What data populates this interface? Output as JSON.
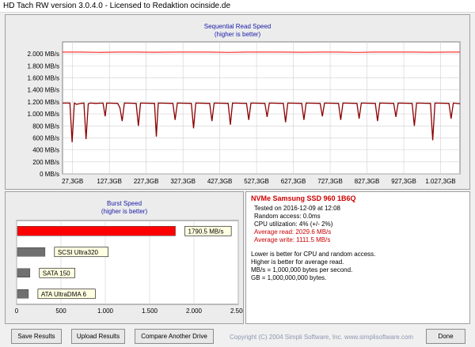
{
  "window": {
    "title": "HD Tach RW version 3.0.4.0 - Licensed to Redaktion ocinside.de"
  },
  "sequential": {
    "title": "Sequential Read Speed",
    "subtitle": "(higher is better)"
  },
  "burst": {
    "title": "Burst Speed",
    "subtitle": "(higher is better)"
  },
  "info": {
    "drive_name": "NVMe Samsung SSD 960 1B6Q",
    "tested_on": "Tested on 2016-12-09 at 12:08",
    "random_access": "Random access: 0.0ms",
    "cpu_util": "CPU utilization: 4% (+/- 2%)",
    "avg_read": "Average read: 2029.6 MB/s",
    "avg_write": "Average write: 1111.5 MB/s",
    "note1": "Lower is better for CPU and random access.",
    "note2": "Higher is better for average read.",
    "note3": "MB/s = 1,000,000 bytes per second.",
    "note4": "GB = 1,000,000,000 bytes."
  },
  "buttons": {
    "save": "Save Results",
    "upload": "Upload Results",
    "compare": "Compare Another Drive",
    "done": "Done"
  },
  "copyright": "Copyright (C) 2004 Simpli Software, Inc. www.simplisoftware.com",
  "colors": {
    "read": "#ff3333",
    "write": "#8b0000",
    "title_blue": "#1a1aa8",
    "drive_red": "#d00000",
    "burst_red": "#ff0000",
    "burst_gray": "#707070"
  },
  "chart_data": [
    {
      "type": "line",
      "title": "Sequential Read Speed",
      "subtitle": "(higher is better)",
      "ylim": [
        0,
        2200
      ],
      "xlim": [
        0,
        1080
      ],
      "y_ticks": [
        0,
        200,
        400,
        600,
        800,
        1000,
        1200,
        1400,
        1600,
        1800,
        2000
      ],
      "y_tick_labels": [
        "0 MB/s",
        "200 MB/s",
        "400 MB/s",
        "600 MB/s",
        "800 MB/s",
        "1.000 MB/s",
        "1.200 MB/s",
        "1.400 MB/s",
        "1.600 MB/s",
        "1.800 MB/s",
        "2.000 MB/s"
      ],
      "x_ticks": [
        27.3,
        127.3,
        227.3,
        327.3,
        427.3,
        527.3,
        627.3,
        727.3,
        827.3,
        927.3,
        1027.3
      ],
      "x_tick_labels": [
        "27,3GB",
        "127,3GB",
        "227,3GB",
        "327,3GB",
        "427,3GB",
        "527,3GB",
        "627,3GB",
        "727,3GB",
        "827,3GB",
        "927,3GB",
        "1.027,3GB"
      ],
      "grid": true,
      "series": [
        {
          "color": "#ff3333",
          "x": [
            0,
            50,
            100,
            150,
            200,
            250,
            300,
            350,
            400,
            450,
            500,
            550,
            600,
            650,
            700,
            750,
            800,
            850,
            900,
            950,
            1000,
            1050,
            1080
          ],
          "values": [
            2030,
            2030,
            2025,
            2030,
            2030,
            2028,
            2030,
            2030,
            2030,
            2025,
            2030,
            2030,
            2030,
            2028,
            2030,
            2030,
            2025,
            2030,
            2030,
            2030,
            2028,
            2030,
            2030
          ]
        },
        {
          "color": "#8b0000",
          "x": [
            0,
            20,
            26,
            32,
            38,
            50,
            58,
            64,
            70,
            76,
            90,
            110,
            116,
            120,
            150,
            156,
            162,
            168,
            200,
            206,
            212,
            250,
            255,
            260,
            300,
            306,
            312,
            350,
            356,
            362,
            400,
            406,
            412,
            450,
            456,
            462,
            500,
            506,
            512,
            550,
            556,
            562,
            600,
            606,
            612,
            650,
            656,
            662,
            700,
            706,
            712,
            750,
            756,
            762,
            800,
            806,
            812,
            850,
            856,
            862,
            900,
            906,
            912,
            950,
            956,
            962,
            1000,
            1006,
            1012,
            1050,
            1056,
            1062,
            1080
          ],
          "values": [
            1180,
            1180,
            530,
            1180,
            1160,
            1175,
            1180,
            580,
            1170,
            1180,
            1175,
            1180,
            960,
            1180,
            1175,
            1100,
            880,
            1180,
            1175,
            800,
            1180,
            1175,
            620,
            1180,
            1175,
            900,
            1180,
            1175,
            760,
            1180,
            1175,
            880,
            1180,
            1175,
            820,
            1180,
            1175,
            900,
            1180,
            1175,
            950,
            1180,
            1175,
            860,
            1180,
            1175,
            900,
            1180,
            1175,
            960,
            1180,
            1175,
            900,
            1180,
            1175,
            920,
            1180,
            1175,
            880,
            1180,
            1175,
            950,
            1180,
            1175,
            800,
            1180,
            1175,
            560,
            1180,
            1175,
            920,
            1180,
            1170
          ]
        }
      ]
    },
    {
      "type": "bar",
      "title": "Burst Speed",
      "subtitle": "(higher is better)",
      "xlim": [
        0,
        2500
      ],
      "x_ticks": [
        0,
        500,
        1000,
        1500,
        2000,
        2500
      ],
      "x_tick_labels": [
        "0",
        "500",
        "1.000",
        "1.500",
        "2.000",
        "2.500"
      ],
      "grid": true,
      "categories": [
        "NVMe Samsung SSD 960",
        "SCSI Ultra320",
        "SATA 150",
        "ATA UltraDMA 6"
      ],
      "values": [
        1790.5,
        320,
        150,
        133
      ],
      "bar_labels": [
        "1790.5 MB/s",
        "SCSI Ultra320",
        "SATA 150",
        "ATA UltraDMA 6"
      ],
      "colors": [
        "#ff0000",
        "#707070",
        "#707070",
        "#707070"
      ]
    }
  ]
}
